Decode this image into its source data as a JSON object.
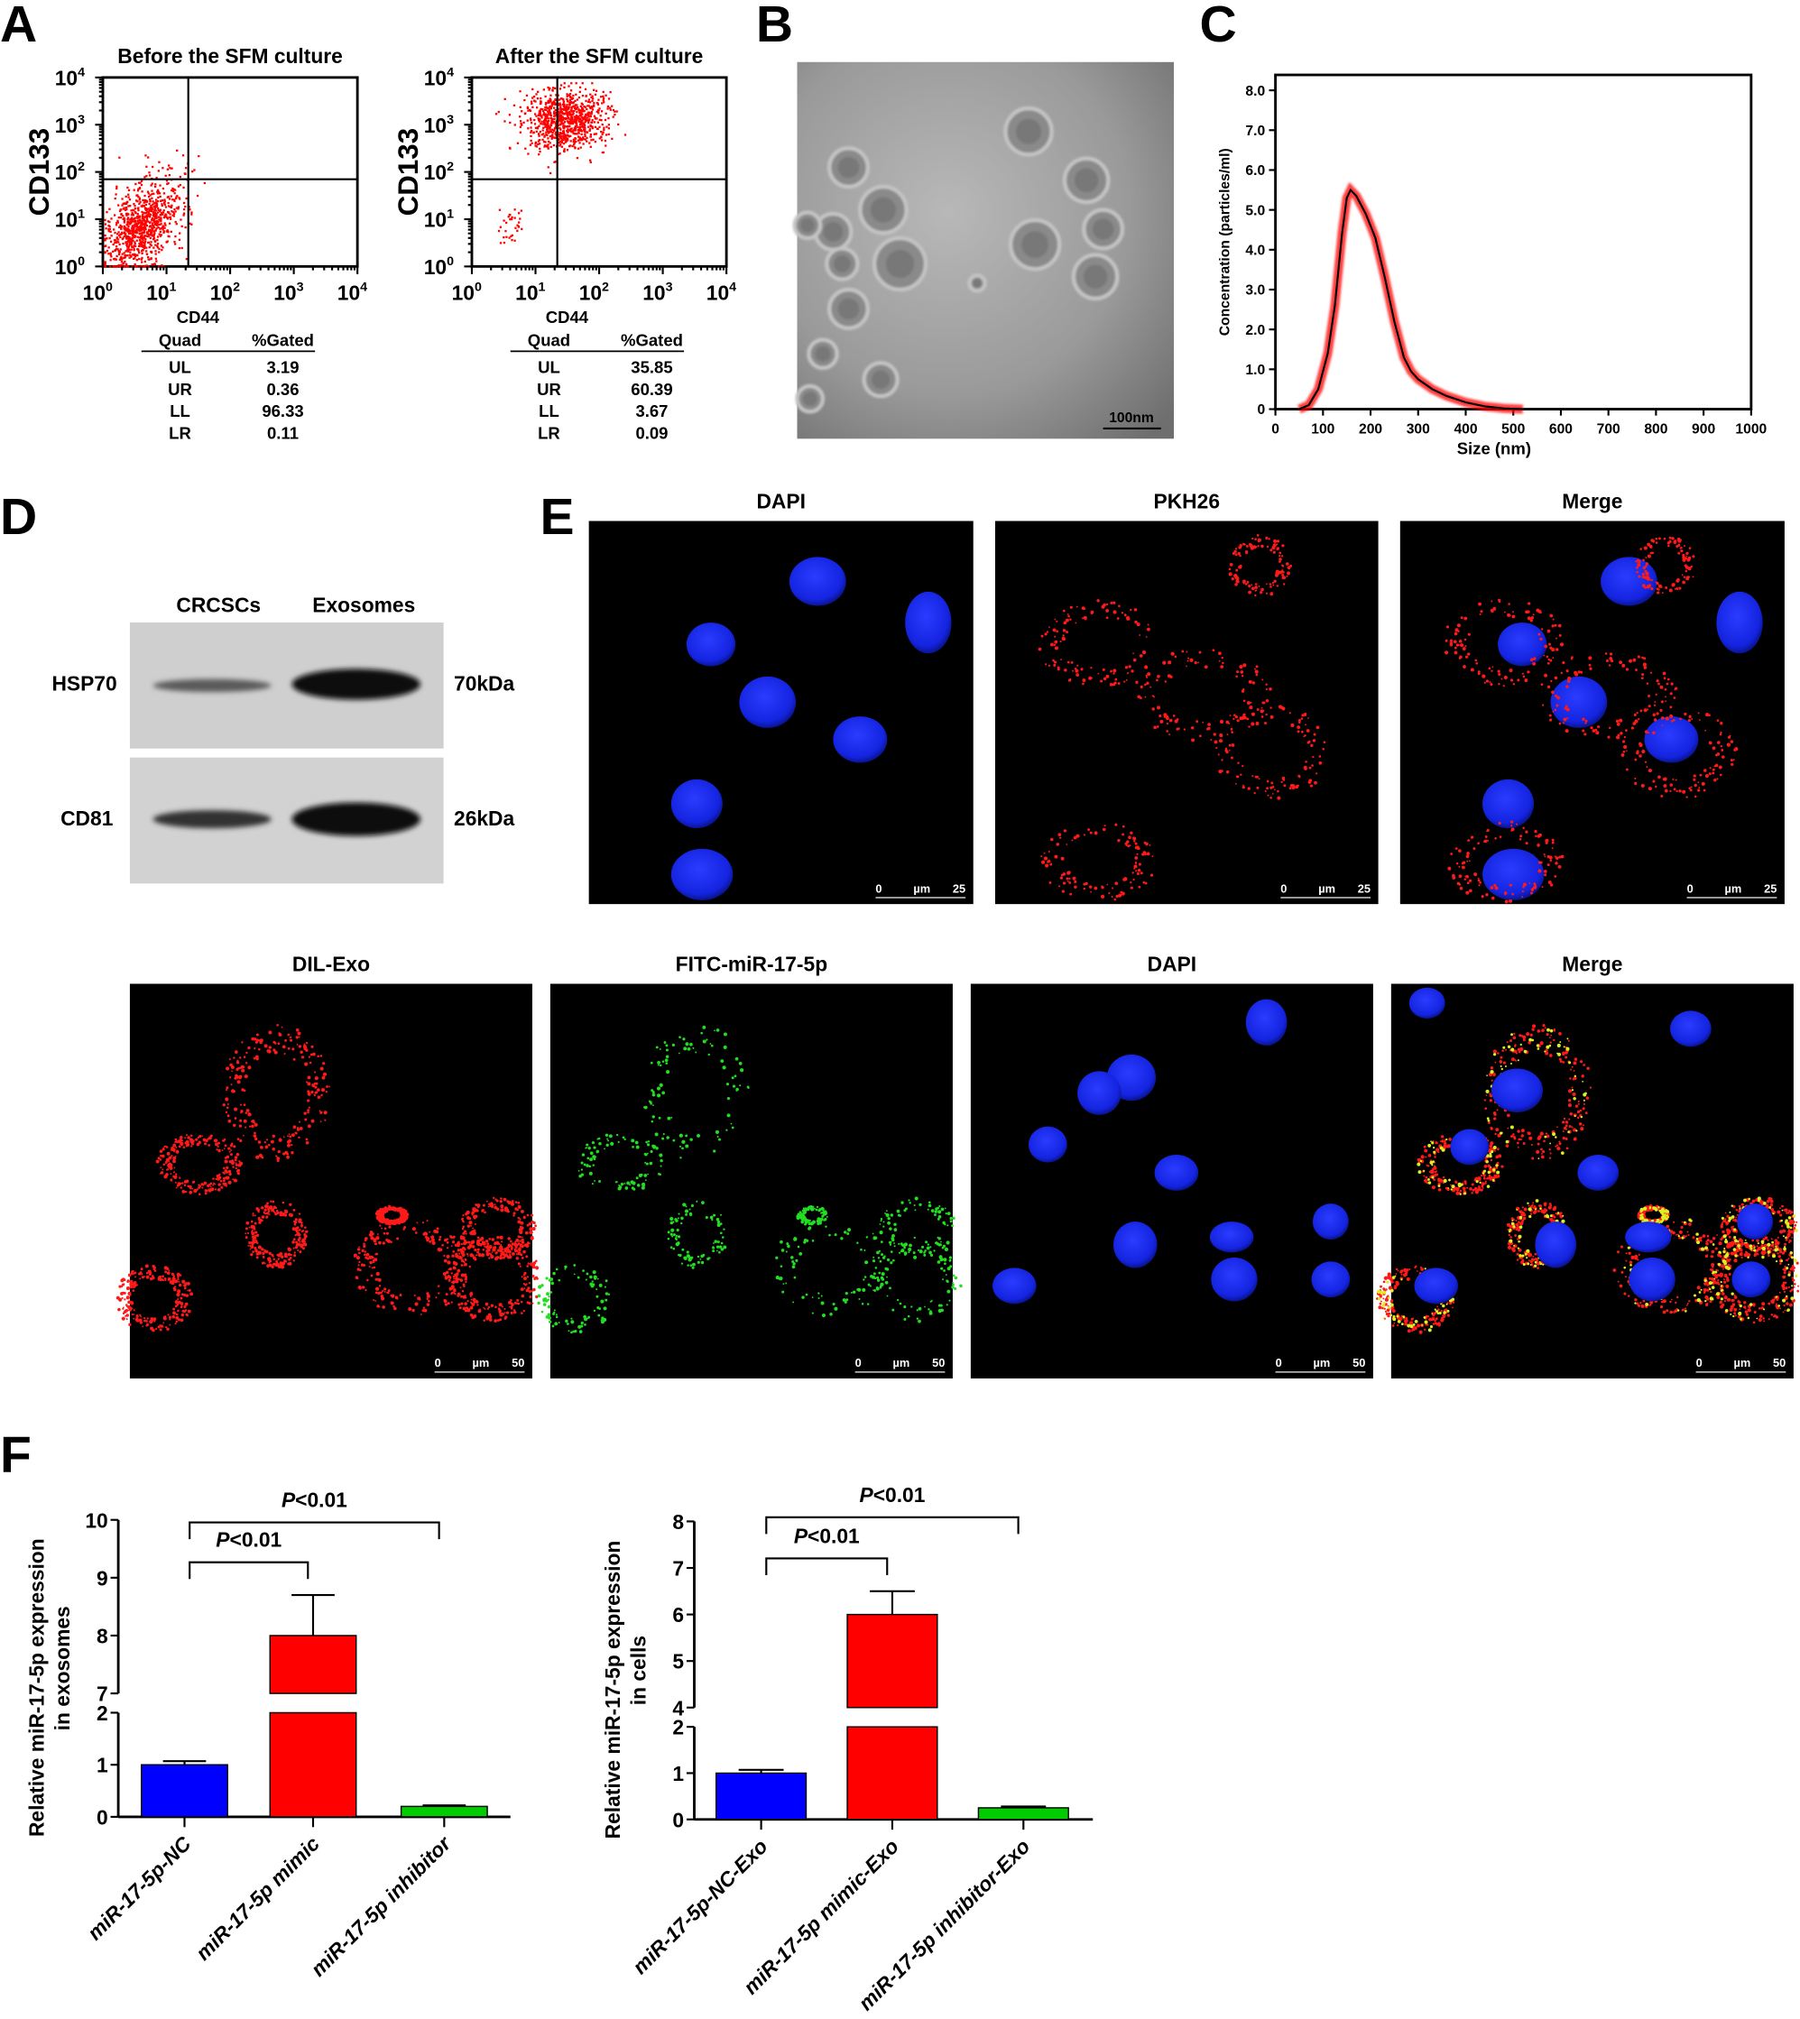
{
  "panel_labels": [
    "A",
    "B",
    "C",
    "D",
    "E",
    "F"
  ],
  "chart_data": [
    {
      "type": "scatter",
      "panel": "A",
      "title": "Before the SFM culture",
      "xlabel": "CD44",
      "ylabel": "CD133",
      "scale": "log",
      "xlim": [
        1,
        10000
      ],
      "ylim": [
        1,
        10000
      ],
      "tick_labels": [
        "10",
        "10",
        "10",
        "10",
        "10"
      ],
      "tick_exponents": [
        "0",
        "1",
        "2",
        "3",
        "4"
      ],
      "table": {
        "headers": [
          "Quad",
          "%Gated"
        ],
        "rows": [
          [
            "UL",
            "3.19"
          ],
          [
            "UR",
            "0.36"
          ],
          [
            "LL",
            "96.33"
          ],
          [
            "LR",
            "0.11"
          ]
        ]
      },
      "point_color": "#ff0000"
    },
    {
      "type": "scatter",
      "panel": "A",
      "title": "After the SFM culture",
      "xlabel": "CD44",
      "ylabel": "CD133",
      "scale": "log",
      "xlim": [
        1,
        10000
      ],
      "ylim": [
        1,
        10000
      ],
      "tick_labels": [
        "10",
        "10",
        "10",
        "10",
        "10"
      ],
      "tick_exponents": [
        "0",
        "1",
        "2",
        "3",
        "4"
      ],
      "table": {
        "headers": [
          "Quad",
          "%Gated"
        ],
        "rows": [
          [
            "UL",
            "35.85"
          ],
          [
            "UR",
            "60.39"
          ],
          [
            "LL",
            "3.67"
          ],
          [
            "LR",
            "0.09"
          ]
        ]
      },
      "point_color": "#ff0000"
    },
    {
      "type": "line",
      "panel": "C",
      "xlabel": "Size (nm)",
      "ylabel": "Concentration (particles/ml)",
      "xlim": [
        0,
        1000
      ],
      "ylim": [
        0,
        8
      ],
      "x_ticks": [
        "0",
        "100",
        "200",
        "300",
        "400",
        "500",
        "600",
        "700",
        "800",
        "900",
        "1000"
      ],
      "y_ticks": [
        "0",
        "1.0",
        "2.0",
        "3.0",
        "4.0",
        "5.0",
        "6.0",
        "7.0",
        "8.0"
      ],
      "x": [
        50,
        70,
        90,
        110,
        125,
        140,
        150,
        158,
        170,
        190,
        210,
        230,
        250,
        270,
        285,
        300,
        330,
        360,
        400,
        440,
        480,
        520
      ],
      "y": [
        0,
        0.1,
        0.5,
        1.4,
        2.6,
        4.4,
        5.3,
        5.5,
        5.35,
        4.9,
        4.3,
        3.3,
        2.2,
        1.3,
        0.95,
        0.75,
        0.5,
        0.33,
        0.17,
        0.07,
        0.02,
        0
      ],
      "line_color": "#000000",
      "band_color": "#ff0000"
    },
    {
      "type": "bar",
      "panel": "F",
      "ylabel": "Relative miR-17-5p expression",
      "ylabel2": "in exosomes",
      "categories": [
        "miR-17-5p-NC",
        "miR-17-5p mimic",
        "miR-17-5p inhibitor"
      ],
      "values": [
        1.0,
        8.0,
        0.2
      ],
      "errors": [
        0.07,
        0.7,
        0.02
      ],
      "colors": [
        "#0000ff",
        "#ff0000",
        "#00cc00"
      ],
      "axis_break": {
        "lower": [
          0,
          2
        ],
        "upper": [
          7,
          10
        ]
      },
      "y_ticks_lower": [
        "0",
        "1",
        "2"
      ],
      "y_ticks_upper": [
        "7",
        "8",
        "9",
        "10"
      ],
      "annotations": [
        {
          "text_italic": "P",
          "text": "<0.01",
          "between": [
            0,
            2
          ]
        },
        {
          "text_italic": "P",
          "text": "<0.01",
          "between": [
            0,
            1
          ]
        }
      ]
    },
    {
      "type": "bar",
      "panel": "F",
      "ylabel": "Relative miR-17-5p expression",
      "ylabel2": "in cells",
      "categories": [
        "miR-17-5p-NC-Exo",
        "miR-17-5p mimic-Exo",
        "miR-17-5p inhibitor-Exo"
      ],
      "values": [
        1.0,
        6.0,
        0.25
      ],
      "errors": [
        0.07,
        0.5,
        0.03
      ],
      "colors": [
        "#0000ff",
        "#ff0000",
        "#00cc00"
      ],
      "axis_break": {
        "lower": [
          0,
          2
        ],
        "upper": [
          4,
          8
        ]
      },
      "y_ticks_lower": [
        "0",
        "1",
        "2"
      ],
      "y_ticks_upper": [
        "4",
        "5",
        "6",
        "7",
        "8"
      ],
      "annotations": [
        {
          "text_italic": "P",
          "text": "<0.01",
          "between": [
            0,
            2
          ]
        },
        {
          "text_italic": "P",
          "text": "<0.01",
          "between": [
            0,
            1
          ]
        }
      ]
    }
  ],
  "tem": {
    "scale_bar": "100nm"
  },
  "western": {
    "lanes": [
      "CRCSCs",
      "Exosomes"
    ],
    "rows": [
      {
        "protein": "HSP70",
        "size": "70kDa"
      },
      {
        "protein": "CD81",
        "size": "26kDa"
      }
    ]
  },
  "micrographs": {
    "row1": {
      "titles": [
        "DAPI",
        "PKH26",
        "Merge"
      ],
      "scale": [
        "0",
        "µm",
        "25"
      ]
    },
    "row2": {
      "titles": [
        "DIL-Exo",
        "FITC-miR-17-5p",
        "DAPI",
        "Merge"
      ],
      "scale": [
        "0",
        "µm",
        "50"
      ]
    },
    "colors": {
      "nucleus": "#1a2cff",
      "exosome": "#ff1a1a",
      "mirna": "#22dd22"
    }
  }
}
